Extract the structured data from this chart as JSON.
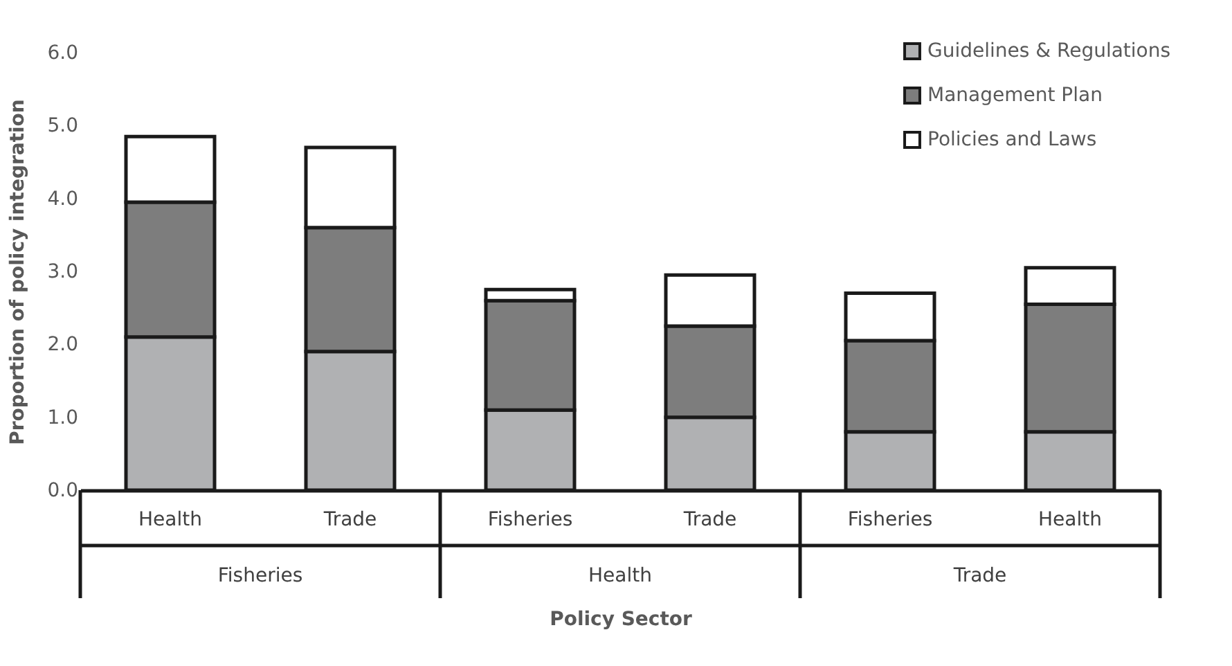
{
  "chart_data": {
    "type": "bar",
    "stacked": true,
    "xlabel": "Policy Sector",
    "ylabel": "Proportion of policy  integration",
    "categories": [
      "Health",
      "Trade",
      "Fisheries",
      "Trade",
      "Fisheries",
      "Health"
    ],
    "annotations": [
      "Fisheries",
      "Health",
      "Trade"
    ],
    "series": [
      {
        "name": "Guidelines & Regulations",
        "color": "#b0b1b3",
        "values": [
          2.1,
          1.9,
          1.1,
          1.0,
          0.8,
          0.8
        ]
      },
      {
        "name": "Management Plan",
        "color": "#7d7d7d",
        "values": [
          1.85,
          1.7,
          1.5,
          1.25,
          1.25,
          1.75
        ]
      },
      {
        "name": "Policies and Laws",
        "color": "#ffffff",
        "values": [
          0.9,
          1.1,
          0.15,
          0.7,
          0.65,
          0.5
        ]
      }
    ],
    "ylim": [
      0,
      6
    ],
    "yticks": [
      {
        "value": 0,
        "label": "0.0"
      },
      {
        "value": 1,
        "label": "1.0"
      },
      {
        "value": 2,
        "label": "2.0"
      },
      {
        "value": 3,
        "label": "3.0"
      },
      {
        "value": 4,
        "label": "4.0"
      },
      {
        "value": 5,
        "label": "5.0"
      },
      {
        "value": 6,
        "label": "6.0"
      }
    ],
    "grid": false,
    "legend": "top right"
  }
}
